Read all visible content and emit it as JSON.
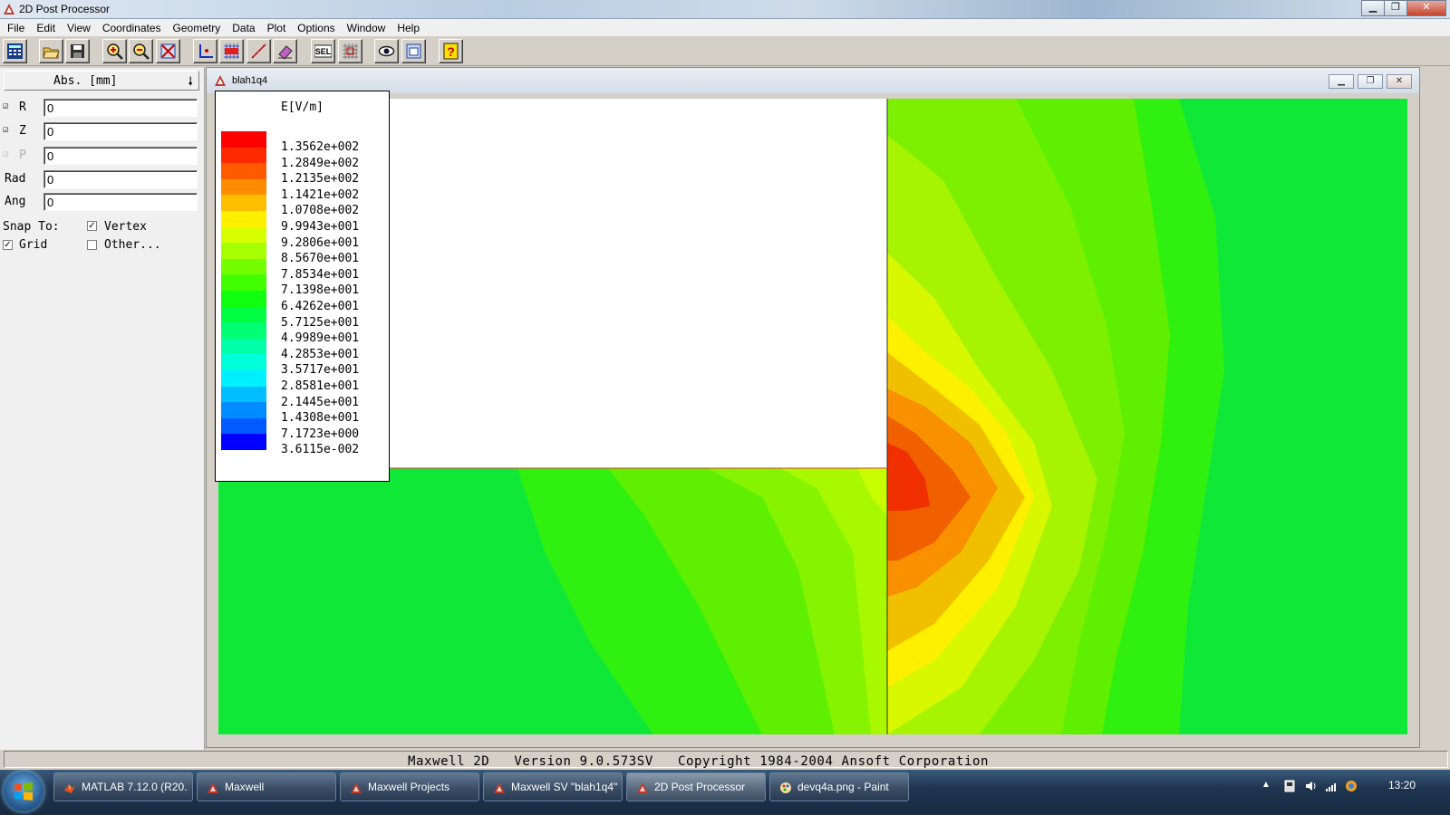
{
  "window": {
    "title": "2D Post Processor"
  },
  "menu": [
    "File",
    "Edit",
    "View",
    "Coordinates",
    "Geometry",
    "Data",
    "Plot",
    "Options",
    "Window",
    "Help"
  ],
  "toolbar": {
    "buttons": [
      "calculator-icon",
      "open-folder-icon",
      "save-icon",
      "zoom-in-icon",
      "zoom-out-icon",
      "zoom-fit-icon",
      "axes-icon",
      "grid-onoff-icon",
      "snap-points-icon",
      "eraser-icon",
      "select-icon",
      "select-all-icon",
      "view-eye-icon",
      "window-icon",
      "help-icon"
    ]
  },
  "coordinates": {
    "system": "Abs. [mm]",
    "fields": [
      {
        "label": "R",
        "value": "0"
      },
      {
        "label": "Z",
        "value": "0"
      },
      {
        "label": "P",
        "value": "0"
      },
      {
        "label": "Rad",
        "value": "0"
      },
      {
        "label": "Ang",
        "value": "0"
      }
    ],
    "snap_label": "Snap To:",
    "snap_vertex": "Vertex",
    "snap_grid": "Grid",
    "snap_other": "Other..."
  },
  "child_window": {
    "title": "blah1q4"
  },
  "legend": {
    "title": "E[V/m]",
    "entries": [
      {
        "value": "1.3562e+002",
        "color": "#ff0000"
      },
      {
        "value": "1.2849e+002",
        "color": "#ff2a00"
      },
      {
        "value": "1.2135e+002",
        "color": "#ff5a00"
      },
      {
        "value": "1.1421e+002",
        "color": "#ff8c00"
      },
      {
        "value": "1.0708e+002",
        "color": "#ffbe00"
      },
      {
        "value": "9.9943e+001",
        "color": "#fff000"
      },
      {
        "value": "9.2806e+001",
        "color": "#d8ff00"
      },
      {
        "value": "8.5670e+001",
        "color": "#a6ff00"
      },
      {
        "value": "7.8534e+001",
        "color": "#74ff00"
      },
      {
        "value": "7.1398e+001",
        "color": "#42ff00"
      },
      {
        "value": "6.4262e+001",
        "color": "#10ff10"
      },
      {
        "value": "5.7125e+001",
        "color": "#00ff42"
      },
      {
        "value": "4.9989e+001",
        "color": "#00ff74"
      },
      {
        "value": "4.2853e+001",
        "color": "#00ffa6"
      },
      {
        "value": "3.5717e+001",
        "color": "#00ffd8"
      },
      {
        "value": "2.8581e+001",
        "color": "#00f0ff"
      },
      {
        "value": "2.1445e+001",
        "color": "#00beff"
      },
      {
        "value": "1.4308e+001",
        "color": "#008cff"
      },
      {
        "value": "7.1723e+000",
        "color": "#005aff"
      },
      {
        "value": "3.6115e-002",
        "color": "#0000ff"
      }
    ]
  },
  "status": {
    "text": "Maxwell 2D   Version 9.0.573SV   Copyright 1984-2004 Ansoft Corporation"
  },
  "taskbar": {
    "tasks": [
      {
        "label": "MATLAB 7.12.0 (R20...",
        "icon": "matlab-icon"
      },
      {
        "label": "Maxwell",
        "icon": "maxwell-icon"
      },
      {
        "label": "Maxwell Projects",
        "icon": "maxwell-icon"
      },
      {
        "label": "Maxwell SV \"blah1q4\"",
        "icon": "maxwell-icon"
      },
      {
        "label": "2D Post Processor",
        "icon": "maxwell-icon"
      },
      {
        "label": "devq4a.png - Paint",
        "icon": "paint-icon"
      }
    ],
    "clock": "13:20"
  }
}
